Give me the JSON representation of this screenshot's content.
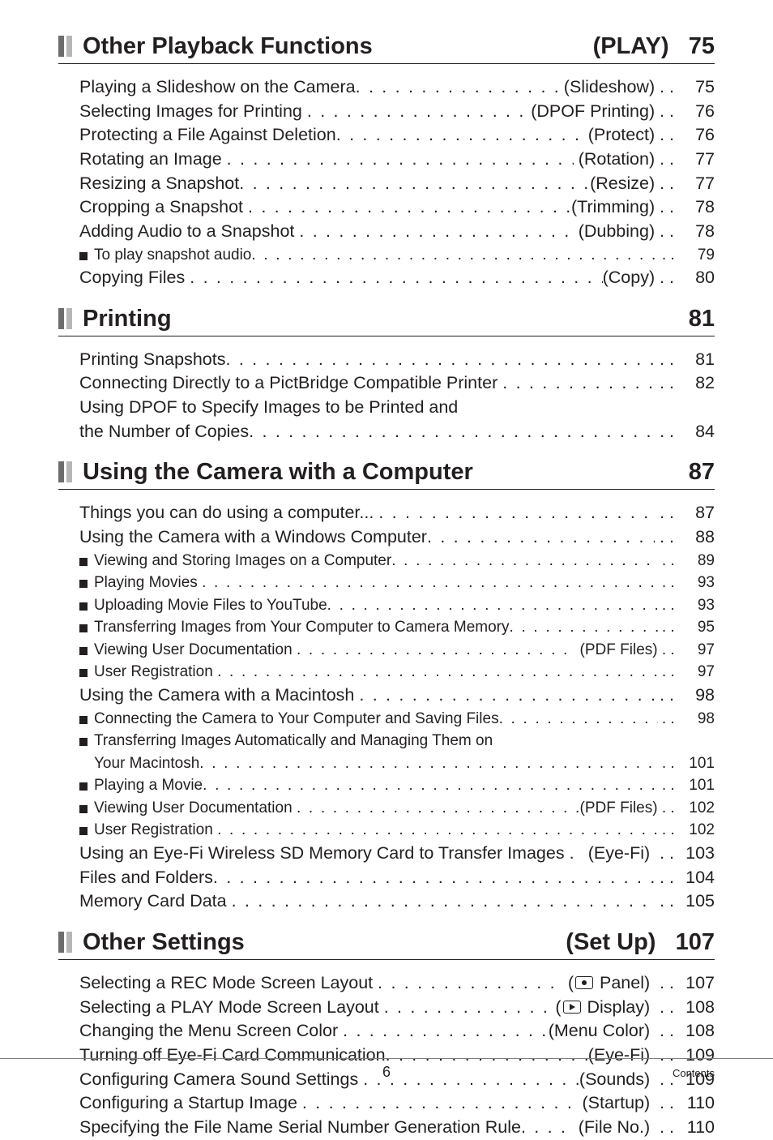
{
  "colors": {
    "bar_dark": "#6d6d6d",
    "bar_light": "#b6b6b6",
    "text": "#231f20",
    "rule": "#231f20",
    "footer_rule": "#808080",
    "background": "#ffffff"
  },
  "sections": [
    {
      "title": "Other Playback Functions",
      "right_tag": "(PLAY)",
      "right_page": "75",
      "lines": [
        {
          "level": 0,
          "label": "Playing a Slideshow on the Camera",
          "tag": "(Slideshow)",
          "page": "75"
        },
        {
          "level": 0,
          "label": "Selecting Images for Printing ",
          "tag": " (DPOF Printing)",
          "page": "76"
        },
        {
          "level": 0,
          "label": "Protecting a File Against Deletion",
          "tag": " (Protect)",
          "page": "76"
        },
        {
          "level": 0,
          "label": "Rotating an Image ",
          "tag": " (Rotation)",
          "page": "77"
        },
        {
          "level": 0,
          "label": "Resizing a Snapshot",
          "tag": "(Resize)",
          "page": "77"
        },
        {
          "level": 0,
          "label": "Cropping a Snapshot ",
          "tag": "(Trimming)",
          "page": "78"
        },
        {
          "level": 0,
          "label": "Adding Audio to a Snapshot ",
          "tag": " (Dubbing)",
          "page": "78"
        },
        {
          "level": 1,
          "label": "To play snapshot audio",
          "tag": "",
          "page": "79"
        },
        {
          "level": 0,
          "label": "Copying Files ",
          "tag": "(Copy)",
          "page": "80"
        }
      ]
    },
    {
      "title": "Printing",
      "right_tag": "",
      "right_page": "81",
      "lines": [
        {
          "level": 0,
          "label": "Printing Snapshots",
          "tag": "",
          "page": "81"
        },
        {
          "level": 0,
          "label": "Connecting Directly to a PictBridge Compatible Printer ",
          "tag": "",
          "page": "82"
        },
        {
          "level": 0,
          "label_only": true,
          "label": "Using DPOF to Specify Images to be Printed and "
        },
        {
          "level": 0,
          "label": "the Number of Copies",
          "tag": "",
          "page": "84"
        }
      ]
    },
    {
      "title": "Using the Camera with a Computer",
      "right_tag": "",
      "right_page": "87",
      "lines": [
        {
          "level": 0,
          "label": "Things you can do using a computer... ",
          "tag": "",
          "page": "87"
        },
        {
          "level": 0,
          "label": "Using the Camera with a Windows Computer",
          "tag": "",
          "page": "88"
        },
        {
          "level": 1,
          "label": "Viewing and Storing Images on a Computer",
          "tag": "",
          "page": "89"
        },
        {
          "level": 1,
          "label": "Playing Movies ",
          "tag": "",
          "page": "93"
        },
        {
          "level": 1,
          "label": "Uploading Movie Files to YouTube",
          "tag": "",
          "page": "93"
        },
        {
          "level": 1,
          "label": "Transferring Images from Your Computer to Camera Memory",
          "tag": "",
          "page": "95"
        },
        {
          "level": 1,
          "label": "Viewing User Documentation ",
          "tag": " (PDF Files)",
          "page": "97"
        },
        {
          "level": 1,
          "label": "User Registration ",
          "tag": "",
          "page": "97"
        },
        {
          "level": 0,
          "label": "Using the Camera with a Macintosh ",
          "tag": "",
          "page": "98"
        },
        {
          "level": 1,
          "label": "Connecting the Camera to Your Computer and Saving Files",
          "tag": "",
          "page": "98"
        },
        {
          "level": 1,
          "label_only": true,
          "label": "Transferring Images Automatically and Managing Them on "
        },
        {
          "level": 1,
          "no_bullet": true,
          "label": "Your Macintosh",
          "tag": "",
          "page": "101"
        },
        {
          "level": 1,
          "label": "Playing a Movie",
          "tag": "",
          "page": "101"
        },
        {
          "level": 1,
          "label": "Viewing User Documentation ",
          "tag": "(PDF Files)",
          "page": "102"
        },
        {
          "level": 1,
          "label": "User Registration ",
          "tag": "",
          "page": "102"
        },
        {
          "level": 0,
          "label": "Using an Eye-Fi Wireless SD Memory Card to Transfer Images ",
          "tag": " (Eye-Fi) ",
          "page": "103"
        },
        {
          "level": 0,
          "label": "Files and Folders",
          "tag": "",
          "page": "104"
        },
        {
          "level": 0,
          "label": "Memory Card Data ",
          "tag": "",
          "page": "105"
        }
      ]
    },
    {
      "title": "Other Settings",
      "right_tag": "(Set Up)",
      "right_page": "107",
      "lines": [
        {
          "level": 0,
          "label": "Selecting a REC Mode Screen Layout ",
          "tag_html": " (<span class=\"icon-rec\"></span> Panel) ",
          "page": "107"
        },
        {
          "level": 0,
          "label": "Selecting a PLAY Mode Screen Layout ",
          "tag_html": " (<span class=\"icon-play\"></span> Display) ",
          "page": "108"
        },
        {
          "level": 0,
          "label": "Changing the Menu Screen Color ",
          "tag": "(Menu Color) ",
          "page": "108"
        },
        {
          "level": 0,
          "label": "Turning off Eye-Fi Card Communication",
          "tag": "(Eye-Fi) ",
          "page": "109"
        },
        {
          "level": 0,
          "label": "Configuring Camera Sound Settings ",
          "tag": "(Sounds) ",
          "page": "109"
        },
        {
          "level": 0,
          "label": "Configuring a Startup Image ",
          "tag": " (Startup) ",
          "page": "110"
        },
        {
          "level": 0,
          "label": "Specifying the File Name Serial Number Generation Rule",
          "tag": " (File No.) ",
          "page": "110"
        }
      ]
    }
  ],
  "footer": {
    "page_number": "6",
    "label": "Contents"
  }
}
